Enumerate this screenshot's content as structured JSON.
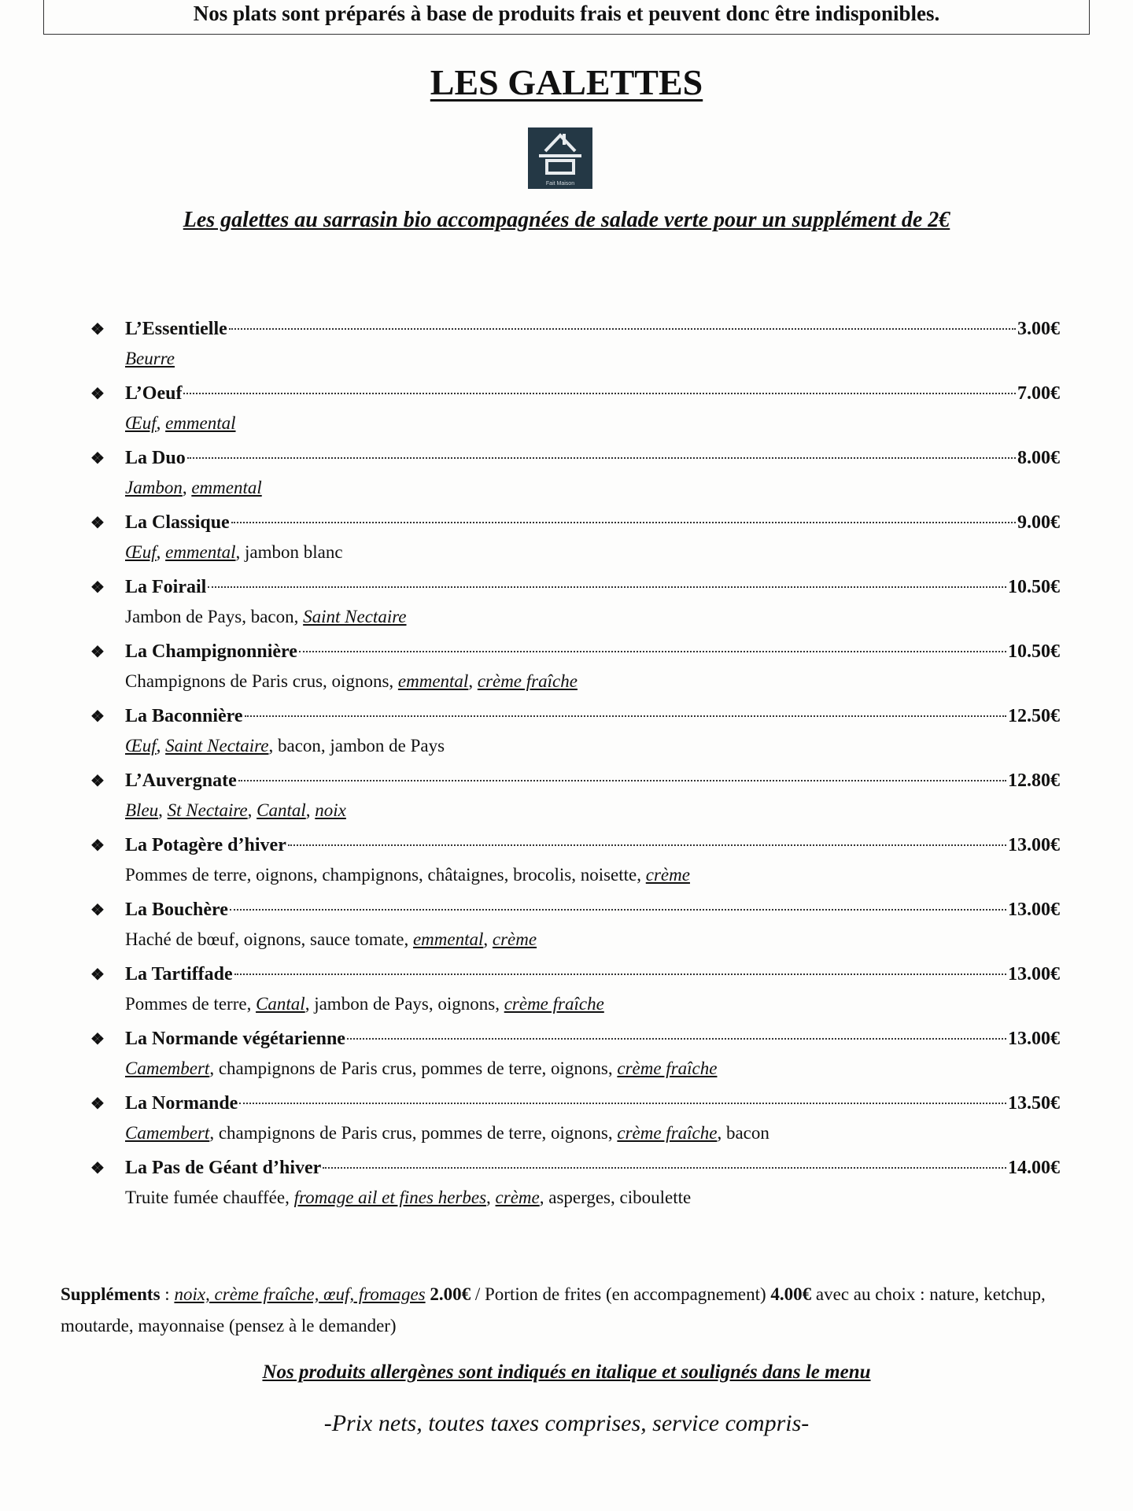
{
  "notice": "Nos plats sont préparés à base de produits frais et peuvent donc être indisponibles.",
  "title": "LES GALETTES",
  "logo": {
    "text": "Fait Maison",
    "color": "#243845"
  },
  "subtitle": "Les galettes au sarrasin bio accompagnées de salade verte pour un supplément de 2€",
  "bullet_icon": "❖",
  "items": [
    {
      "name": "L’Essentielle",
      "price": "3.00€",
      "desc": [
        {
          "t": "Beurre",
          "a": true
        }
      ]
    },
    {
      "name": "L’Oeuf",
      "price": "7.00€",
      "desc": [
        {
          "t": "Œuf",
          "a": true
        },
        {
          "t": ", "
        },
        {
          "t": "emmental",
          "a": true
        }
      ]
    },
    {
      "name": "La Duo",
      "price": "8.00€",
      "desc": [
        {
          "t": "Jambon",
          "a": true
        },
        {
          "t": ", "
        },
        {
          "t": "emmental",
          "a": true
        }
      ]
    },
    {
      "name": "La Classique",
      "price": "9.00€",
      "desc": [
        {
          "t": "Œuf",
          "a": true
        },
        {
          "t": ", "
        },
        {
          "t": "emmental",
          "a": true
        },
        {
          "t": ", jambon blanc"
        }
      ]
    },
    {
      "name": "La Foirail",
      "price": "10.50€",
      "desc": [
        {
          "t": "Jambon de Pays, bacon, "
        },
        {
          "t": "Saint Nectaire",
          "a": true
        }
      ]
    },
    {
      "name": "La Champignonnière",
      "price": "10.50€",
      "desc": [
        {
          "t": "Champignons de Paris crus, oignons, "
        },
        {
          "t": "emmental",
          "a": true
        },
        {
          "t": ", "
        },
        {
          "t": "crème fraîche",
          "a": true
        }
      ]
    },
    {
      "name": "La Baconnière",
      "price": "12.50€",
      "desc": [
        {
          "t": "Œuf",
          "a": true
        },
        {
          "t": ", "
        },
        {
          "t": "Saint Nectaire",
          "a": true
        },
        {
          "t": ", bacon, jambon de Pays"
        }
      ]
    },
    {
      "name": "L’Auvergnate",
      "price": "12.80€",
      "desc": [
        {
          "t": "Bleu",
          "a": true
        },
        {
          "t": ", "
        },
        {
          "t": "St Nectaire",
          "a": true
        },
        {
          "t": ", "
        },
        {
          "t": "Cantal",
          "a": true
        },
        {
          "t": ", "
        },
        {
          "t": "noix",
          "a": true
        }
      ]
    },
    {
      "name": "La Potagère d’hiver",
      "price": "13.00€",
      "desc": [
        {
          "t": "Pommes de terre, oignons, champignons, châtaignes, brocolis, noisette, "
        },
        {
          "t": "crème",
          "a": true
        }
      ]
    },
    {
      "name": "La Bouchère",
      "price": "13.00€",
      "desc": [
        {
          "t": "Haché de bœuf, oignons, sauce tomate, "
        },
        {
          "t": "emmental",
          "a": true
        },
        {
          "t": ", "
        },
        {
          "t": "crème",
          "a": true
        }
      ]
    },
    {
      "name": "La Tartiffade",
      "price": "13.00€",
      "desc": [
        {
          "t": "Pommes de terre, "
        },
        {
          "t": "Cantal",
          "a": true
        },
        {
          "t": ", jambon de Pays, oignons, "
        },
        {
          "t": "crème fraîche",
          "a": true
        }
      ]
    },
    {
      "name": "La Normande végétarienne",
      "price": "13.00€",
      "desc": [
        {
          "t": "Camembert",
          "a": true
        },
        {
          "t": ", champignons de Paris crus, pommes de terre, oignons, "
        },
        {
          "t": "crème fraîche",
          "a": true
        }
      ]
    },
    {
      "name": "La Normande",
      "price": "13.50€",
      "desc": [
        {
          "t": "Camembert",
          "a": true
        },
        {
          "t": ", champignons de Paris crus, pommes de terre, oignons, "
        },
        {
          "t": "crème fraîche",
          "a": true
        },
        {
          "t": ", bacon"
        }
      ]
    },
    {
      "name": "La Pas de Géant d’hiver",
      "price": "14.00€",
      "desc": [
        {
          "t": "Truite fumée chauffée, "
        },
        {
          "t": "fromage ail et fines herbes",
          "a": true
        },
        {
          "t": ", "
        },
        {
          "t": "crème",
          "a": true
        },
        {
          "t": ", asperges, ciboulette"
        }
      ]
    }
  ],
  "supplements": {
    "label": "Suppléments",
    "sep": " : ",
    "allergens": "noix, crème fraîche, œuf, fromages",
    "price1": " 2.00€",
    "text1": " / Portion de frites (en accompagnement) ",
    "price2": "4.00€",
    "text2": " avec au choix : nature, ketchup, moutarde, mayonnaise (pensez à le demander)"
  },
  "allergen_note": "Nos produits allergènes sont indiqués en italique et soulignés dans le menu",
  "prices_note": "-Prix nets, toutes taxes comprises, service compris-"
}
